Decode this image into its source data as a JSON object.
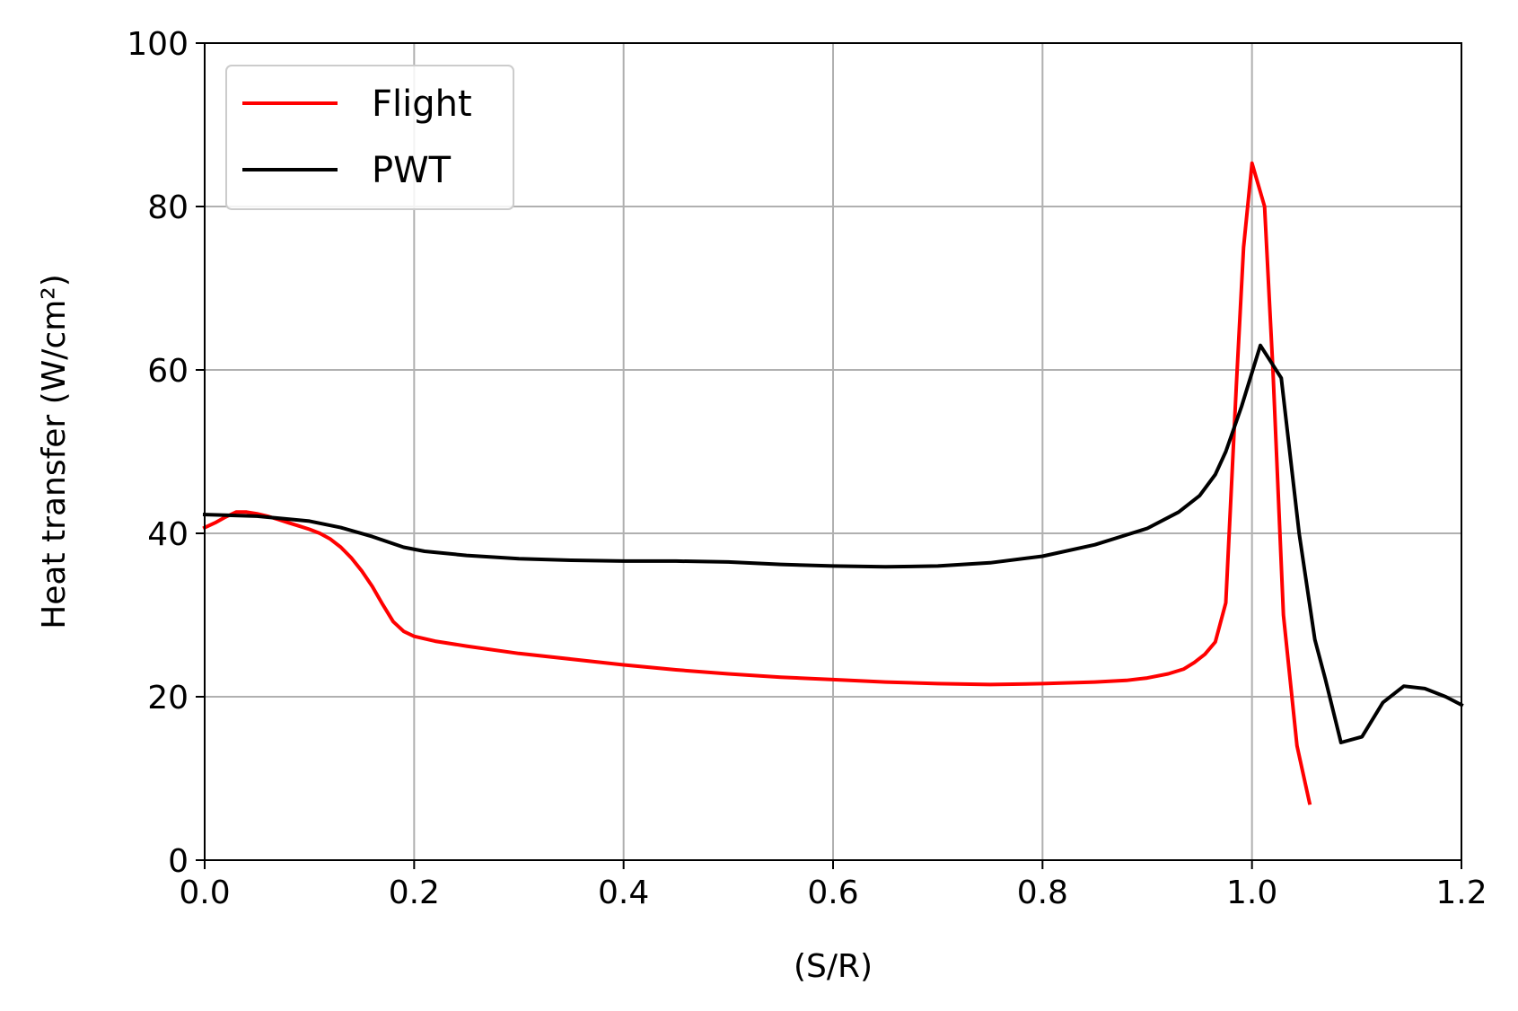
{
  "chart_data": {
    "type": "line",
    "xlabel": "(S/R)",
    "ylabel": "Heat transfer (W/cm²)",
    "xlim": [
      0.0,
      1.2
    ],
    "ylim": [
      0,
      100
    ],
    "xticks": [
      "0.0",
      "0.2",
      "0.4",
      "0.6",
      "0.8",
      "1.0",
      "1.2"
    ],
    "yticks": [
      "0",
      "20",
      "40",
      "60",
      "80",
      "100"
    ],
    "grid": true,
    "legend_position": "top-left",
    "series": [
      {
        "name": "Flight",
        "color": "#ff0000",
        "points": [
          [
            0.0,
            40.7
          ],
          [
            0.01,
            41.3
          ],
          [
            0.02,
            42.0
          ],
          [
            0.03,
            42.6
          ],
          [
            0.04,
            42.6
          ],
          [
            0.05,
            42.4
          ],
          [
            0.06,
            42.1
          ],
          [
            0.07,
            41.7
          ],
          [
            0.08,
            41.3
          ],
          [
            0.09,
            40.9
          ],
          [
            0.1,
            40.5
          ],
          [
            0.11,
            40.0
          ],
          [
            0.12,
            39.3
          ],
          [
            0.13,
            38.3
          ],
          [
            0.14,
            37.0
          ],
          [
            0.15,
            35.4
          ],
          [
            0.16,
            33.5
          ],
          [
            0.17,
            31.3
          ],
          [
            0.18,
            29.2
          ],
          [
            0.19,
            28.0
          ],
          [
            0.2,
            27.4
          ],
          [
            0.22,
            26.8
          ],
          [
            0.25,
            26.2
          ],
          [
            0.3,
            25.3
          ],
          [
            0.35,
            24.6
          ],
          [
            0.4,
            23.9
          ],
          [
            0.45,
            23.3
          ],
          [
            0.5,
            22.8
          ],
          [
            0.55,
            22.4
          ],
          [
            0.6,
            22.1
          ],
          [
            0.65,
            21.8
          ],
          [
            0.7,
            21.6
          ],
          [
            0.75,
            21.5
          ],
          [
            0.8,
            21.6
          ],
          [
            0.85,
            21.8
          ],
          [
            0.88,
            22.0
          ],
          [
            0.9,
            22.3
          ],
          [
            0.92,
            22.8
          ],
          [
            0.935,
            23.4
          ],
          [
            0.945,
            24.2
          ],
          [
            0.955,
            25.2
          ],
          [
            0.965,
            26.7
          ],
          [
            0.975,
            31.5
          ],
          [
            0.985,
            58.0
          ],
          [
            0.992,
            75.0
          ],
          [
            1.0,
            85.3
          ],
          [
            1.012,
            80.0
          ],
          [
            1.02,
            60.0
          ],
          [
            1.03,
            30.0
          ],
          [
            1.043,
            14.0
          ],
          [
            1.055,
            7.0
          ]
        ]
      },
      {
        "name": "PWT",
        "color": "#000000",
        "points": [
          [
            0.0,
            42.3
          ],
          [
            0.05,
            42.1
          ],
          [
            0.1,
            41.5
          ],
          [
            0.13,
            40.7
          ],
          [
            0.16,
            39.6
          ],
          [
            0.19,
            38.3
          ],
          [
            0.21,
            37.8
          ],
          [
            0.25,
            37.3
          ],
          [
            0.3,
            36.9
          ],
          [
            0.35,
            36.7
          ],
          [
            0.4,
            36.6
          ],
          [
            0.45,
            36.6
          ],
          [
            0.5,
            36.5
          ],
          [
            0.55,
            36.2
          ],
          [
            0.6,
            36.0
          ],
          [
            0.65,
            35.9
          ],
          [
            0.7,
            36.0
          ],
          [
            0.75,
            36.4
          ],
          [
            0.8,
            37.2
          ],
          [
            0.85,
            38.6
          ],
          [
            0.9,
            40.6
          ],
          [
            0.93,
            42.6
          ],
          [
            0.95,
            44.6
          ],
          [
            0.965,
            47.2
          ],
          [
            0.975,
            50.0
          ],
          [
            0.99,
            55.5
          ],
          [
            1.008,
            63.0
          ],
          [
            1.028,
            59.0
          ],
          [
            1.045,
            40.0
          ],
          [
            1.06,
            27.0
          ],
          [
            1.07,
            22.2
          ],
          [
            1.085,
            14.4
          ],
          [
            1.105,
            15.1
          ],
          [
            1.125,
            19.3
          ],
          [
            1.145,
            21.3
          ],
          [
            1.165,
            21.0
          ],
          [
            1.185,
            20.0
          ],
          [
            1.2,
            19.0
          ]
        ]
      }
    ]
  }
}
